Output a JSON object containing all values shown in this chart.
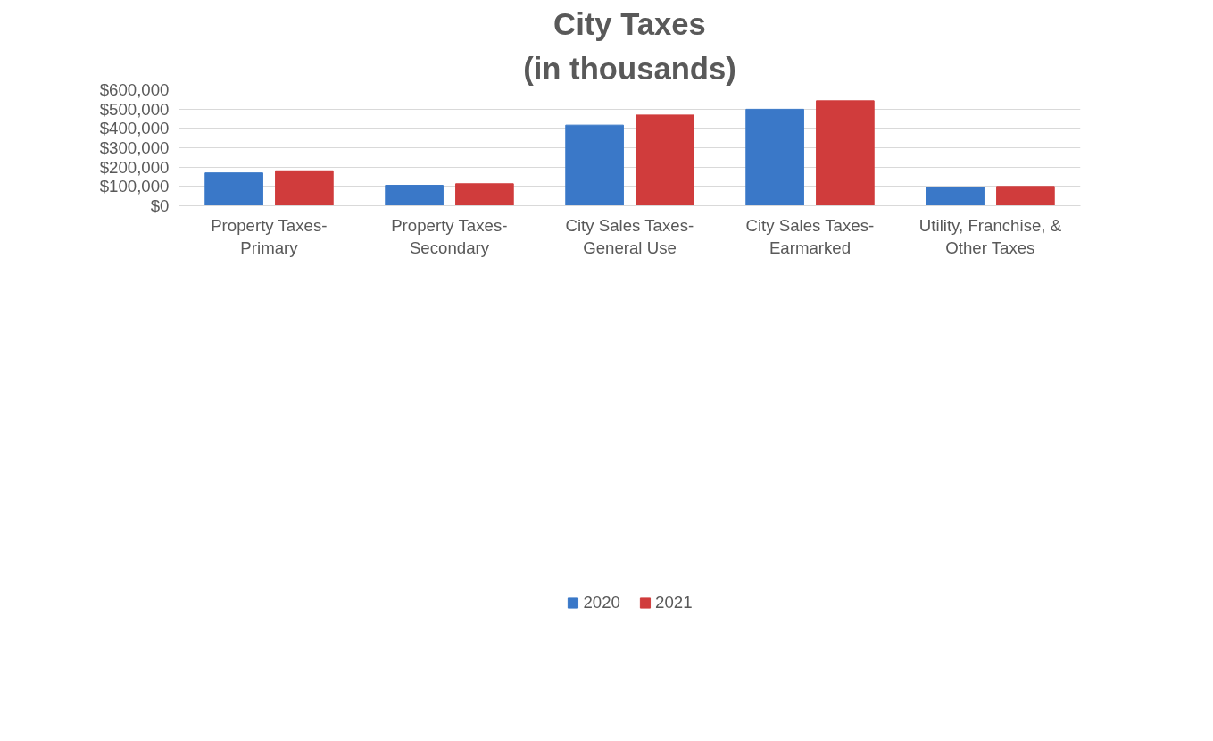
{
  "chart_data": {
    "type": "bar",
    "title": "City Taxes",
    "subtitle": "(in thousands)",
    "categories": [
      "Property Taxes-\nPrimary",
      "Property Taxes-\nSecondary",
      "City Sales Taxes-\nGeneral Use",
      "City Sales Taxes-\nEarmarked",
      "Utility, Franchise, &\nOther Taxes"
    ],
    "series": [
      {
        "name": "2020",
        "color": "#3a78c8",
        "values": [
          170000,
          106000,
          417000,
          499000,
          96000
        ]
      },
      {
        "name": "2021",
        "color": "#d03c3c",
        "values": [
          181000,
          114000,
          469000,
          543000,
          100000
        ]
      }
    ],
    "ylim": [
      0,
      600000
    ],
    "yticks": [
      {
        "value": 0,
        "label": "$0"
      },
      {
        "value": 100000,
        "label": "$100,000"
      },
      {
        "value": 200000,
        "label": "$200,000"
      },
      {
        "value": 300000,
        "label": "$300,000"
      },
      {
        "value": 400000,
        "label": "$400,000"
      },
      {
        "value": 500000,
        "label": "$500,000"
      },
      {
        "value": 600000,
        "label": "$600,000"
      }
    ],
    "grid": "y",
    "legend": "bottom"
  }
}
